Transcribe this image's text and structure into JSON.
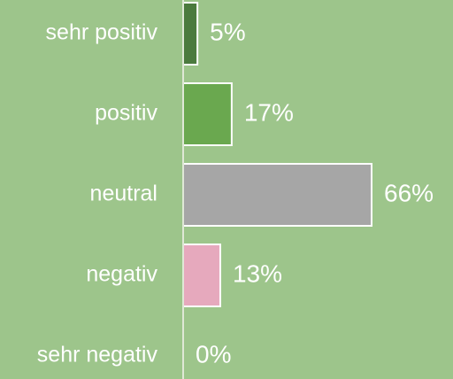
{
  "chart_data": {
    "type": "barh",
    "categories": [
      "sehr positiv",
      "positiv",
      "neutral",
      "negativ",
      "sehr negativ"
    ],
    "values": [
      5,
      17,
      66,
      13,
      0
    ],
    "value_labels": [
      "5%",
      "17%",
      "66%",
      "13%",
      "0%"
    ],
    "colors": [
      "#4b7a3e",
      "#6aa84f",
      "#a6a6a6",
      "#e6a9bd",
      "#9dc58b"
    ]
  }
}
